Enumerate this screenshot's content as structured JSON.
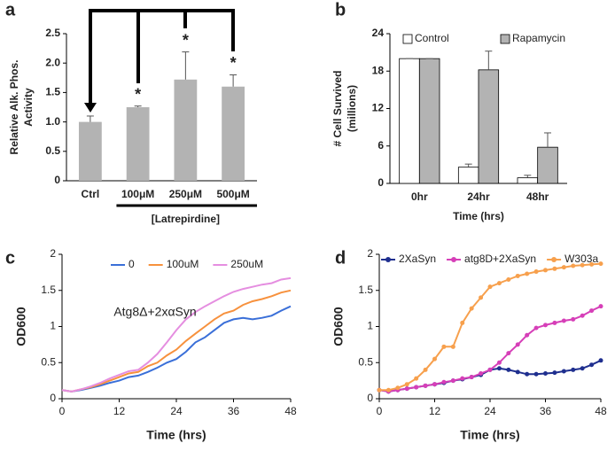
{
  "chart_data": [
    {
      "type": "bar",
      "panel": "a",
      "ylabel": [
        "Relative Alk. Phos.",
        "Activity"
      ],
      "categories": [
        "Ctrl",
        "100μM",
        "250μM",
        "500μM"
      ],
      "values": [
        1.0,
        1.25,
        1.72,
        1.6
      ],
      "errors": [
        0.1,
        0.02,
        0.47,
        0.2
      ],
      "color": "#b3b3b3",
      "ylim": [
        0,
        2.5
      ],
      "yticks": [
        0,
        0.5,
        {
          "value": 1,
          "label": "1.0"
        },
        1.5,
        {
          "value": 2,
          "label": "2.0"
        },
        2.5
      ],
      "annotations": [
        "*",
        "*",
        "*"
      ],
      "group_label": "[Latrepirdine]"
    },
    {
      "type": "bar",
      "panel": "b",
      "ylabel": [
        "# Cell Survived",
        "(millions)"
      ],
      "xlabel": "Time (hrs)",
      "categories": [
        "0hr",
        "24hr",
        "48hr"
      ],
      "series": [
        {
          "name": "Control",
          "color": "#ffffff",
          "values": [
            20,
            2.6,
            0.9
          ],
          "errors": [
            0,
            0.5,
            0.4
          ]
        },
        {
          "name": "Rapamycin",
          "color": "#b3b3b3",
          "values": [
            20,
            18.2,
            5.8
          ],
          "errors": [
            0,
            3,
            2.3
          ]
        }
      ],
      "ylim": [
        0,
        24
      ],
      "yticks": [
        0,
        6,
        12,
        18,
        24
      ]
    },
    {
      "type": "line",
      "panel": "c",
      "ylabel": "OD600",
      "xlabel": "Time (hrs)",
      "annotation": "Atg8Δ+2xαSyn",
      "x": [
        0,
        2,
        4,
        6,
        8,
        10,
        12,
        14,
        16,
        18,
        20,
        22,
        24,
        26,
        28,
        30,
        32,
        34,
        36,
        38,
        40,
        42,
        44,
        46,
        48
      ],
      "series": [
        {
          "name": "0",
          "color": "#3a6fd8",
          "values": [
            0.12,
            0.1,
            0.12,
            0.15,
            0.18,
            0.22,
            0.25,
            0.3,
            0.32,
            0.37,
            0.43,
            0.5,
            0.55,
            0.65,
            0.78,
            0.85,
            0.95,
            1.05,
            1.1,
            1.12,
            1.1,
            1.12,
            1.15,
            1.22,
            1.28
          ]
        },
        {
          "name": "100uM",
          "color": "#f7913d",
          "values": [
            0.12,
            0.1,
            0.13,
            0.16,
            0.2,
            0.25,
            0.3,
            0.35,
            0.37,
            0.45,
            0.5,
            0.6,
            0.68,
            0.8,
            0.9,
            1.0,
            1.1,
            1.18,
            1.22,
            1.3,
            1.35,
            1.38,
            1.42,
            1.47,
            1.5
          ]
        },
        {
          "name": "250uM",
          "color": "#e58ee0",
          "values": [
            0.12,
            0.1,
            0.13,
            0.17,
            0.22,
            0.28,
            0.33,
            0.38,
            0.4,
            0.5,
            0.62,
            0.78,
            0.95,
            1.1,
            1.2,
            1.28,
            1.35,
            1.42,
            1.48,
            1.52,
            1.55,
            1.58,
            1.6,
            1.65,
            1.67
          ]
        }
      ],
      "xlim": [
        0,
        48
      ],
      "xticks": [
        0,
        12,
        24,
        36,
        48
      ],
      "ylim": [
        0,
        2
      ],
      "yticks": [
        0,
        0.5,
        1,
        1.5,
        2
      ]
    },
    {
      "type": "line",
      "panel": "d",
      "ylabel": "OD600",
      "xlabel": "Time (hrs)",
      "markers": true,
      "x": [
        0,
        2,
        4,
        6,
        8,
        10,
        12,
        14,
        16,
        18,
        20,
        22,
        24,
        26,
        28,
        30,
        32,
        34,
        36,
        38,
        40,
        42,
        44,
        46,
        48
      ],
      "series": [
        {
          "name": "2XaSyn",
          "color": "#1f2f8f",
          "values": [
            0.12,
            0.1,
            0.12,
            0.14,
            0.16,
            0.18,
            0.2,
            0.22,
            0.25,
            0.27,
            0.3,
            0.33,
            0.4,
            0.42,
            0.4,
            0.37,
            0.34,
            0.34,
            0.35,
            0.36,
            0.38,
            0.4,
            0.42,
            0.47,
            0.53
          ]
        },
        {
          "name": "atg8D+2XaSyn",
          "color": "#d63fb8",
          "values": [
            0.12,
            0.1,
            0.12,
            0.14,
            0.16,
            0.18,
            0.2,
            0.23,
            0.25,
            0.28,
            0.3,
            0.35,
            0.4,
            0.5,
            0.63,
            0.75,
            0.88,
            0.98,
            1.02,
            1.05,
            1.08,
            1.1,
            1.15,
            1.22,
            1.28
          ]
        },
        {
          "name": "W303a",
          "color": "#f7a04d",
          "values": [
            0.12,
            0.12,
            0.15,
            0.2,
            0.28,
            0.4,
            0.55,
            0.72,
            0.72,
            1.05,
            1.25,
            1.4,
            1.55,
            1.6,
            1.65,
            1.7,
            1.73,
            1.76,
            1.78,
            1.8,
            1.82,
            1.84,
            1.85,
            1.86,
            1.87
          ]
        }
      ],
      "xlim": [
        0,
        48
      ],
      "xticks": [
        0,
        12,
        24,
        36,
        48
      ],
      "ylim": [
        0,
        2
      ],
      "yticks": [
        0,
        0.5,
        1,
        1.5,
        2
      ]
    }
  ]
}
